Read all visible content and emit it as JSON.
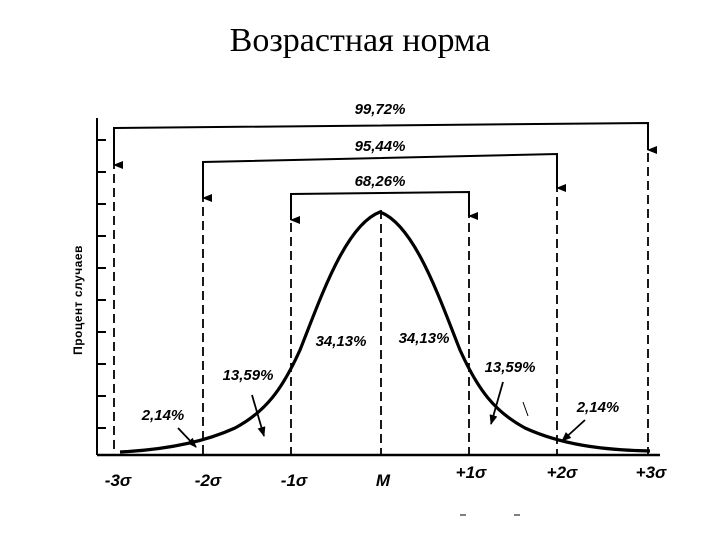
{
  "title": "Возрастная норма",
  "y_axis_label": "Процент случаев",
  "brackets": {
    "sigma3": "99,72%",
    "sigma2": "95,44%",
    "sigma1": "68,26%"
  },
  "areas": {
    "left_tail": "2,14%",
    "left_mid": "13,59%",
    "left_center": "34,13%",
    "right_center": "34,13%",
    "right_mid": "13,59%",
    "right_tail": "2,14%"
  },
  "x_ticks": [
    "-3σ",
    "-2σ",
    "-1σ",
    "M",
    "+1σ",
    "+2σ",
    "+3σ"
  ]
}
